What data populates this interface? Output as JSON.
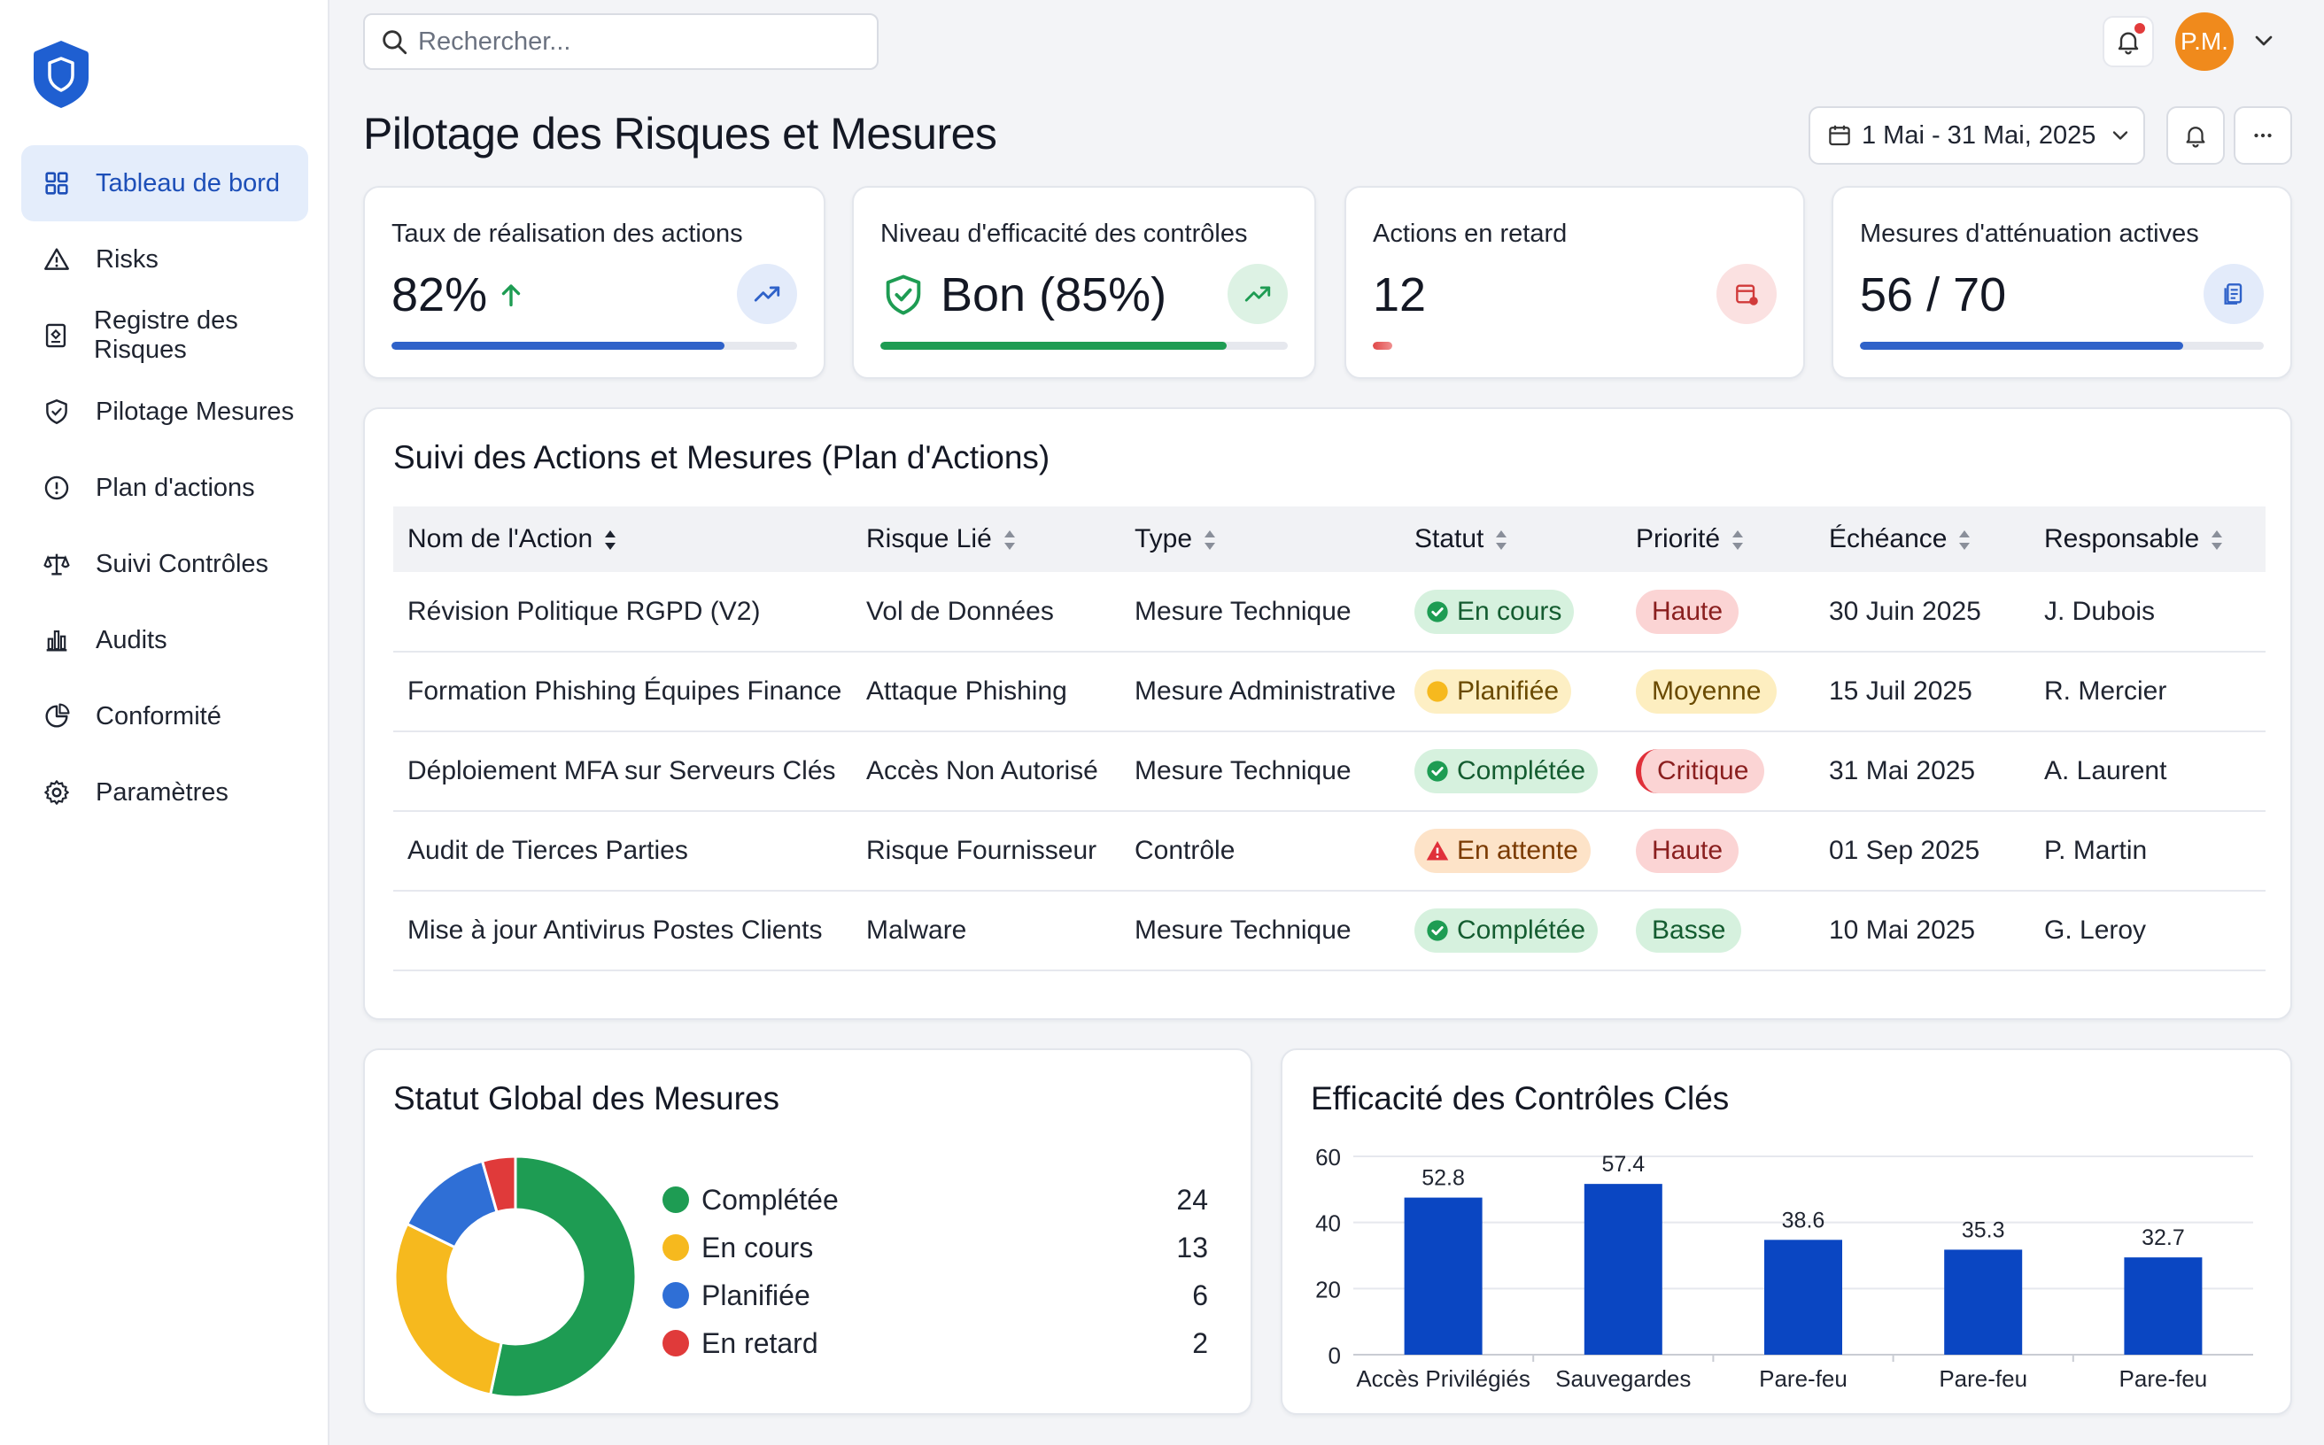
{
  "search": {
    "placeholder": "Rechercher..."
  },
  "user": {
    "initials": "P.M."
  },
  "sidebar": {
    "items": [
      {
        "label": "Tableau de bord",
        "icon": "grid-icon",
        "active": true
      },
      {
        "label": "Risks",
        "icon": "warning-icon"
      },
      {
        "label": "Registre des Risques",
        "icon": "register-icon"
      },
      {
        "label": "Pilotage Mesures",
        "icon": "shield-icon"
      },
      {
        "label": "Plan d'actions",
        "icon": "alert-circle-icon"
      },
      {
        "label": "Suivi Contrôles",
        "icon": "scales-icon"
      },
      {
        "label": "Audits",
        "icon": "bar-chart-icon"
      },
      {
        "label": "Conformité",
        "icon": "pie-icon"
      },
      {
        "label": "Paramètres",
        "icon": "gear-icon"
      }
    ]
  },
  "header": {
    "title": "Pilotage des Risques et Mesures",
    "date_range": "1 Mai - 31 Mai, 2025"
  },
  "kpis": [
    {
      "label": "Taux de réalisation des actions",
      "value": "82%",
      "progress": 0.82,
      "color": "#2f62c9"
    },
    {
      "label": "Niveau d'efficacité des contrôles",
      "value": "Bon (85%)",
      "progress": 0.85,
      "color": "#1e9c53"
    },
    {
      "label": "Actions en retard",
      "value": "12",
      "progress": 0.04,
      "color": "#e04848"
    },
    {
      "label": "Mesures d'atténuation actives",
      "value": "56 / 70",
      "progress": 0.8,
      "color": "#2f62c9"
    }
  ],
  "actions_table": {
    "title": "Suivi des Actions et Mesures (Plan d'Actions)",
    "columns": [
      "Nom de l'Action",
      "Risque Lié",
      "Type",
      "Statut",
      "Priorité",
      "Échéance",
      "Responsable"
    ],
    "rows": [
      {
        "name": "Révision Politique RGPD (V2)",
        "risk": "Vol de Données",
        "type": "Mesure Technique",
        "status": "En cours",
        "priority": "Haute",
        "due": "30 Juin 2025",
        "owner": "J. Dubois"
      },
      {
        "name": "Formation Phishing Équipes Finance",
        "risk": "Attaque Phishing",
        "type": "Mesure Administrative",
        "status": "Planifiée",
        "priority": "Moyenne",
        "due": "15 Juil 2025",
        "owner": "R. Mercier"
      },
      {
        "name": "Déploiement MFA sur Serveurs Clés",
        "risk": "Accès Non Autorisé",
        "type": "Mesure Technique",
        "status": "Complétée",
        "priority": "Critique",
        "due": "31 Mai 2025",
        "owner": "A. Laurent"
      },
      {
        "name": "Audit de Tierces Parties",
        "risk": "Risque Fournisseur",
        "type": "Contrôle",
        "status": "En attente",
        "priority": "Haute",
        "due": "01 Sep 2025",
        "owner": "P. Martin"
      },
      {
        "name": "Mise à jour Antivirus Postes Clients",
        "risk": "Malware",
        "type": "Mesure Technique",
        "status": "Complétée",
        "priority": "Basse",
        "due": "10 Mai 2025",
        "owner": "G. Leroy"
      }
    ]
  },
  "chart_data": [
    {
      "type": "pie",
      "title": "Statut Global des Mesures",
      "categories": [
        "Complétée",
        "En cours",
        "Planifiée",
        "En retard"
      ],
      "values": [
        24,
        13,
        6,
        2
      ],
      "colors": [
        "#1e9c53",
        "#f6b91e",
        "#2f6fd6",
        "#e03a3a"
      ]
    },
    {
      "type": "bar",
      "title": "Efficacité des Contrôles Clés",
      "categories": [
        "Accès Privilégiés",
        "Sauvegardes",
        "Pare-feu",
        "Pare-feu",
        "Pare-feu"
      ],
      "values": [
        52.8,
        57.4,
        38.6,
        35.3,
        32.7
      ],
      "ylim": [
        0,
        60
      ],
      "yticks": [
        0,
        20,
        40,
        60
      ],
      "color": "#0a46c2",
      "grid": true
    }
  ]
}
